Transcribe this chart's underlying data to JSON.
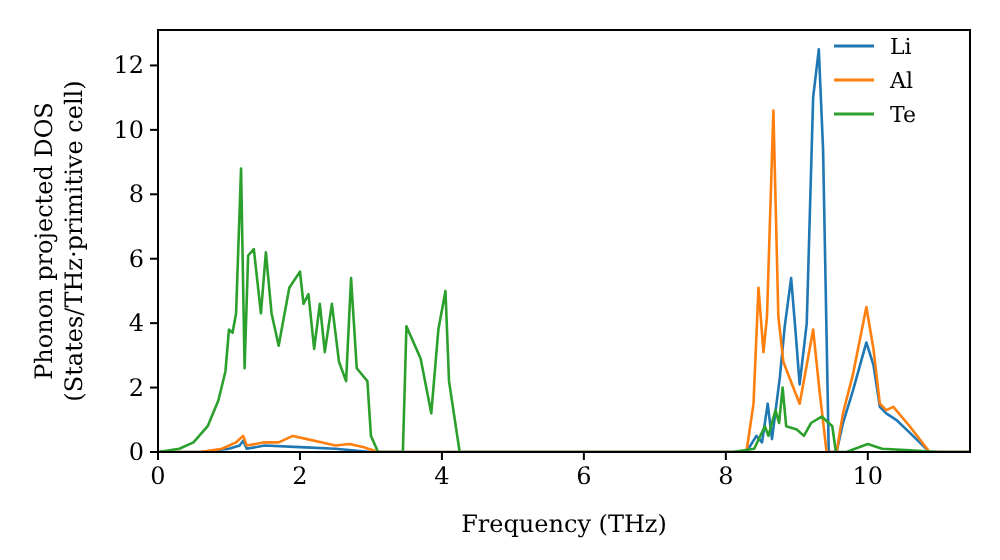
{
  "chart_data": {
    "type": "line",
    "xlabel": "Frequency (THz)",
    "ylabel": "Phonon projected DOS\n(States/THz·primitive cell)",
    "xlim": [
      0,
      11.44
    ],
    "ylim": [
      0,
      13.1
    ],
    "xticks": [
      0,
      2,
      4,
      6,
      8,
      10
    ],
    "yticks": [
      0,
      2,
      4,
      6,
      8,
      10,
      12
    ],
    "legend": "top right",
    "grid": false,
    "marker": "none",
    "line_style": "solid",
    "series": [
      {
        "name": "Li",
        "color": "#1f77b4",
        "x": [
          0,
          0.6,
          1.0,
          1.15,
          1.2,
          1.25,
          1.5,
          2.0,
          2.5,
          3.0,
          8.29,
          8.43,
          8.51,
          8.59,
          8.65,
          8.76,
          8.83,
          8.92,
          8.98,
          9.04,
          9.14,
          9.23,
          9.31,
          9.37,
          9.45,
          9.56,
          9.65,
          9.79,
          9.98,
          10.08,
          10.17,
          10.26,
          10.4,
          10.59,
          10.87,
          11.44
        ],
        "values": [
          0,
          0,
          0.1,
          0.2,
          0.35,
          0.1,
          0.2,
          0.15,
          0.1,
          0,
          0,
          0.5,
          0.3,
          1.5,
          0.4,
          2.3,
          3.9,
          5.4,
          3.8,
          2.1,
          4.0,
          11.0,
          12.5,
          9.4,
          0,
          0,
          0.9,
          1.9,
          3.4,
          2.7,
          1.4,
          1.2,
          1.0,
          0.6,
          0,
          0
        ]
      },
      {
        "name": "Al",
        "color": "#ff7f0e",
        "x": [
          0,
          0.6,
          0.9,
          1.1,
          1.2,
          1.25,
          1.5,
          1.7,
          1.9,
          2.1,
          2.3,
          2.5,
          2.7,
          2.9,
          3.1,
          8.29,
          8.39,
          8.46,
          8.53,
          8.58,
          8.67,
          8.74,
          8.81,
          8.95,
          9.04,
          9.14,
          9.23,
          9.32,
          9.42,
          9.56,
          9.65,
          9.79,
          9.98,
          10.08,
          10.17,
          10.26,
          10.36,
          10.59,
          10.87,
          11.44
        ],
        "values": [
          0,
          0,
          0.1,
          0.3,
          0.5,
          0.2,
          0.3,
          0.3,
          0.5,
          0.4,
          0.3,
          0.2,
          0.25,
          0.15,
          0,
          0,
          1.5,
          5.1,
          3.1,
          4.2,
          10.6,
          4.2,
          2.8,
          2.0,
          1.5,
          2.7,
          3.8,
          1.9,
          0,
          0,
          1.2,
          2.4,
          4.5,
          3.2,
          1.5,
          1.3,
          1.4,
          0.8,
          0,
          0
        ]
      },
      {
        "name": "Te",
        "color": "#2ca02c",
        "x": [
          0,
          0.3,
          0.5,
          0.7,
          0.85,
          0.95,
          1.0,
          1.05,
          1.1,
          1.17,
          1.22,
          1.27,
          1.35,
          1.45,
          1.52,
          1.6,
          1.7,
          1.85,
          2.0,
          2.05,
          2.12,
          2.2,
          2.28,
          2.35,
          2.45,
          2.55,
          2.65,
          2.72,
          2.8,
          2.95,
          3.0,
          3.1,
          3.45,
          3.5,
          3.7,
          3.85,
          3.95,
          4.05,
          4.1,
          4.25,
          8.1,
          8.4,
          8.55,
          8.6,
          8.7,
          8.75,
          8.8,
          8.85,
          9.0,
          9.1,
          9.2,
          9.35,
          9.5,
          9.55,
          9.7,
          10.0,
          10.2,
          10.6,
          11.0,
          11.44
        ],
        "values": [
          0,
          0.1,
          0.3,
          0.8,
          1.6,
          2.5,
          3.8,
          3.7,
          4.3,
          8.8,
          2.6,
          6.1,
          6.3,
          4.3,
          6.2,
          4.3,
          3.3,
          5.1,
          5.6,
          4.6,
          4.9,
          3.2,
          4.6,
          3.1,
          4.6,
          2.8,
          2.2,
          5.4,
          2.6,
          2.2,
          0.5,
          0,
          0,
          3.9,
          2.9,
          1.2,
          3.8,
          5.0,
          2.2,
          0,
          0,
          0.1,
          0.8,
          0.5,
          1.3,
          0.9,
          2.0,
          0.8,
          0.7,
          0.5,
          0.9,
          1.1,
          0.8,
          0,
          0,
          0.25,
          0.1,
          0.05,
          0,
          0
        ]
      }
    ]
  }
}
